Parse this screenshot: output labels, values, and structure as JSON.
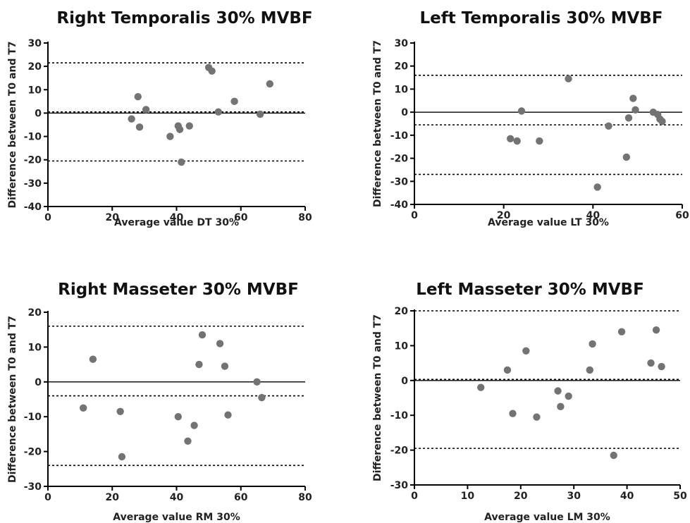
{
  "chart_data": [
    {
      "type": "scatter",
      "title": "Right Temporalis 30% MVBF",
      "xlabel": "Average value DT 30%",
      "ylabel": "Difference between T0 and T7",
      "xlim": [
        0,
        80
      ],
      "ylim": [
        -40,
        30
      ],
      "xticks": [
        0,
        20,
        40,
        60,
        80
      ],
      "yticks": [
        -40,
        -30,
        -20,
        -10,
        0,
        10,
        20,
        30
      ],
      "zero_line": 0,
      "mean_line": 0.5,
      "limits_of_agreement": [
        -20.5,
        21.5
      ],
      "grid": false,
      "points": [
        {
          "x": 26,
          "y": -2.5
        },
        {
          "x": 28,
          "y": 7
        },
        {
          "x": 28.5,
          "y": -6
        },
        {
          "x": 30.5,
          "y": 1.5
        },
        {
          "x": 38,
          "y": -10
        },
        {
          "x": 40.5,
          "y": -5.5
        },
        {
          "x": 41,
          "y": -7
        },
        {
          "x": 41.5,
          "y": -21
        },
        {
          "x": 44,
          "y": -5.5
        },
        {
          "x": 50,
          "y": 19.5
        },
        {
          "x": 51,
          "y": 18
        },
        {
          "x": 53,
          "y": 0.5
        },
        {
          "x": 58,
          "y": 5
        },
        {
          "x": 66,
          "y": -0.5
        },
        {
          "x": 69,
          "y": 12.5
        }
      ]
    },
    {
      "type": "scatter",
      "title": "Left Temporalis 30% MVBF",
      "xlabel": "Average value LT 30%",
      "ylabel": "Difference between T0 and T7",
      "xlim": [
        0,
        60
      ],
      "ylim": [
        -40,
        30
      ],
      "xticks": [
        0,
        20,
        40,
        60
      ],
      "yticks": [
        -40,
        -30,
        -20,
        -10,
        0,
        10,
        20,
        30
      ],
      "zero_line": 0,
      "mean_line": -5.5,
      "limits_of_agreement": [
        -27,
        16
      ],
      "grid": false,
      "points": [
        {
          "x": 21.5,
          "y": -11.5
        },
        {
          "x": 23,
          "y": -12.5
        },
        {
          "x": 24,
          "y": 0.5
        },
        {
          "x": 28,
          "y": -12.5
        },
        {
          "x": 34.5,
          "y": 14.5
        },
        {
          "x": 41,
          "y": -32.5
        },
        {
          "x": 43.5,
          "y": -6
        },
        {
          "x": 47.5,
          "y": -19.5
        },
        {
          "x": 48,
          "y": -2.5
        },
        {
          "x": 49,
          "y": 6
        },
        {
          "x": 49.5,
          "y": 1
        },
        {
          "x": 53.5,
          "y": 0
        },
        {
          "x": 54.5,
          "y": -1
        },
        {
          "x": 55,
          "y": -3
        },
        {
          "x": 55.5,
          "y": -4
        }
      ]
    },
    {
      "type": "scatter",
      "title": "Right Masseter 30% MVBF",
      "xlabel": "Average value RM 30%",
      "ylabel": "Difference between T0 and T7",
      "xlim": [
        0,
        80
      ],
      "ylim": [
        -30,
        20
      ],
      "xticks": [
        0,
        20,
        40,
        60,
        80
      ],
      "yticks": [
        -30,
        -20,
        -10,
        0,
        10,
        20
      ],
      "zero_line": 0,
      "mean_line": -4,
      "limits_of_agreement": [
        -24,
        16
      ],
      "grid": false,
      "points": [
        {
          "x": 11,
          "y": -7.5
        },
        {
          "x": 14,
          "y": 6.5
        },
        {
          "x": 22.5,
          "y": -8.5
        },
        {
          "x": 23,
          "y": -21.5
        },
        {
          "x": 40.5,
          "y": -10
        },
        {
          "x": 43.5,
          "y": -17
        },
        {
          "x": 45.5,
          "y": -12.5
        },
        {
          "x": 47,
          "y": 5
        },
        {
          "x": 48,
          "y": 13.5
        },
        {
          "x": 53.5,
          "y": 11
        },
        {
          "x": 55,
          "y": 4.5
        },
        {
          "x": 56,
          "y": -9.5
        },
        {
          "x": 65,
          "y": 0
        },
        {
          "x": 66.5,
          "y": -4.5
        }
      ]
    },
    {
      "type": "scatter",
      "title": "Left Masseter 30% MVBF",
      "xlabel": "Average value LM 30%",
      "ylabel": "Difference between T0 and T7",
      "xlim": [
        0,
        50
      ],
      "ylim": [
        -30,
        20
      ],
      "xticks": [
        0,
        10,
        20,
        30,
        40,
        50
      ],
      "yticks": [
        -30,
        -20,
        -10,
        0,
        10,
        20
      ],
      "zero_line": 0,
      "mean_line": 0.3,
      "limits_of_agreement": [
        -19.5,
        20
      ],
      "grid": false,
      "points": [
        {
          "x": 12.5,
          "y": -2
        },
        {
          "x": 17.5,
          "y": 3
        },
        {
          "x": 18.5,
          "y": -9.5
        },
        {
          "x": 21,
          "y": 8.5
        },
        {
          "x": 23,
          "y": -10.5
        },
        {
          "x": 27,
          "y": -3
        },
        {
          "x": 27.5,
          "y": -7.5
        },
        {
          "x": 29,
          "y": -4.5
        },
        {
          "x": 33,
          "y": 3
        },
        {
          "x": 33.5,
          "y": 10.5
        },
        {
          "x": 37.5,
          "y": -21.5
        },
        {
          "x": 39,
          "y": 14
        },
        {
          "x": 44.5,
          "y": 5
        },
        {
          "x": 45.5,
          "y": 14.5
        },
        {
          "x": 46.5,
          "y": 4
        }
      ]
    }
  ],
  "colors": {
    "point": "#737373",
    "axis": "#000000",
    "reference_line": "#000000",
    "text": "#222222"
  }
}
